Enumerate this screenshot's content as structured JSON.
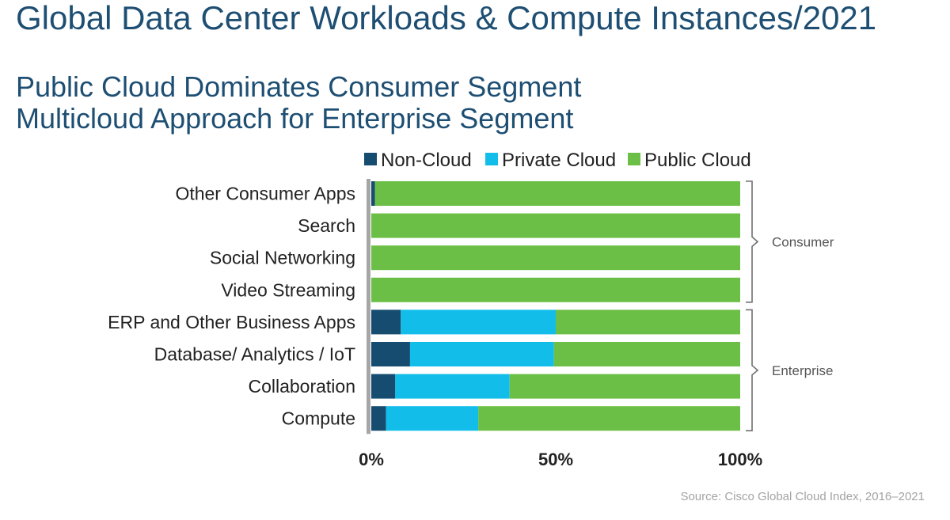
{
  "title": "Global Data Center Workloads & Compute Instances/2021",
  "subtitles": [
    "Public Cloud Dominates Consumer Segment",
    "Multicloud Approach for Enterprise Segment"
  ],
  "source": "Source: Cisco Global Cloud Index, 2016–2021",
  "colors": {
    "title": "#1e4f73",
    "non_cloud": "#154c6f",
    "private_cloud": "#13bde9",
    "public_cloud": "#6cbf46",
    "axis": "#a6a6a6",
    "bracket": "#707070",
    "source": "#a3a3a3"
  },
  "chart_data": {
    "type": "bar",
    "orientation": "horizontal",
    "stacked": true,
    "percent": true,
    "categories": [
      "Other Consumer Apps",
      "Search",
      "Social Networking",
      "Video Streaming",
      "ERP and Other Business Apps",
      "Database/ Analytics / IoT",
      "Collaboration",
      "Compute"
    ],
    "series": [
      {
        "name": "Non-Cloud",
        "color": "#154c6f",
        "values": [
          1,
          0,
          0,
          0,
          8,
          10.5,
          6.5,
          4
        ]
      },
      {
        "name": "Private Cloud",
        "color": "#13bde9",
        "values": [
          0,
          0,
          0,
          0,
          42,
          39,
          31,
          25
        ]
      },
      {
        "name": "Public Cloud",
        "color": "#6cbf46",
        "values": [
          99,
          100,
          100,
          100,
          50,
          50.5,
          62.5,
          71
        ]
      }
    ],
    "xlim": [
      0,
      100
    ],
    "xticks": [
      {
        "value": 0,
        "label": "0%"
      },
      {
        "value": 50,
        "label": "50%"
      },
      {
        "value": 100,
        "label": "100%"
      }
    ],
    "groups": [
      {
        "label": "Consumer",
        "from": 0,
        "to": 3
      },
      {
        "label": "Enterprise",
        "from": 4,
        "to": 7
      }
    ],
    "legend_position": "top",
    "grid": false
  }
}
